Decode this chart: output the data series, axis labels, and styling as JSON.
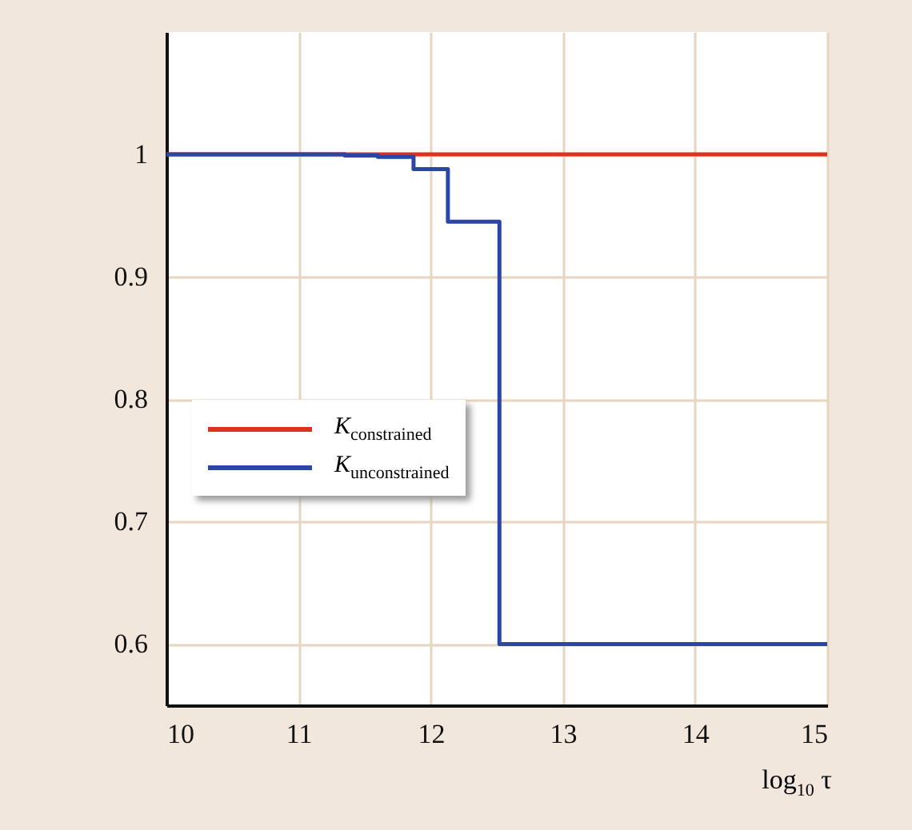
{
  "chart_data": {
    "type": "step",
    "xlabel": "log$_{10}$ τ",
    "xlim": [
      10,
      15
    ],
    "xticks": [
      10,
      11,
      12,
      13,
      14,
      15
    ],
    "ylim": [
      0.55,
      1.1
    ],
    "yticks": [
      0.6,
      0.7,
      0.8,
      0.9,
      1
    ],
    "grid": true,
    "legend": "left",
    "series": [
      {
        "name": "K$_{constrained}$",
        "color": "#e0301e",
        "x": [
          10,
          15
        ],
        "values": [
          1,
          1
        ]
      },
      {
        "name": "K$_{unconstrained}$",
        "color": "#2a47a8",
        "x": [
          10,
          11.35,
          11.6,
          11.87,
          12.13,
          12.52,
          15
        ],
        "values": [
          1,
          0.999,
          0.998,
          0.988,
          0.945,
          0.6,
          0.6
        ]
      }
    ]
  }
}
